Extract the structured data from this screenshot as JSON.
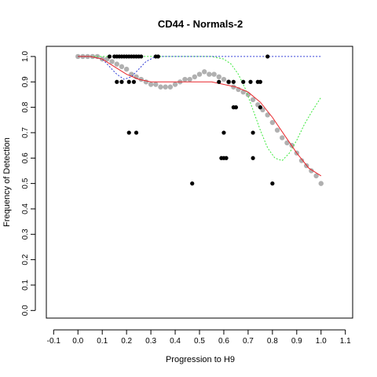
{
  "chart_data": {
    "type": "scatter",
    "title": "CD44 - Normals-2",
    "xlabel": "Progression to H9",
    "ylabel": "Frequency of Detection",
    "xlim": [
      -0.13,
      1.13
    ],
    "ylim": [
      -0.03,
      1.04
    ],
    "xticks": [
      "-0.1",
      "0.0",
      "0.1",
      "0.2",
      "0.3",
      "0.4",
      "0.5",
      "0.6",
      "0.7",
      "0.8",
      "0.9",
      "1.0",
      "1.1"
    ],
    "xtick_values": [
      -0.1,
      0.0,
      0.1,
      0.2,
      0.3,
      0.4,
      0.5,
      0.6,
      0.7,
      0.8,
      0.9,
      1.0,
      1.1
    ],
    "yticks": [
      "0.0",
      "0.1",
      "0.2",
      "0.3",
      "0.4",
      "0.5",
      "0.6",
      "0.7",
      "0.8",
      "0.9",
      "1.0"
    ],
    "ytick_values": [
      0.0,
      0.1,
      0.2,
      0.3,
      0.4,
      0.5,
      0.6,
      0.7,
      0.8,
      0.9,
      1.0
    ],
    "grid": false,
    "legend": "none",
    "colors": {
      "observed": "#000000",
      "smoothed_points": "#b0b0b0",
      "fit_line": "#e8262b",
      "blue_curve": "#2f3bd6",
      "green_curve": "#3ae83a"
    },
    "observed_points": {
      "x": [
        0.13,
        0.15,
        0.16,
        0.17,
        0.18,
        0.19,
        0.2,
        0.21,
        0.22,
        0.23,
        0.24,
        0.25,
        0.26,
        0.32,
        0.33,
        0.78,
        0.16,
        0.18,
        0.21,
        0.23,
        0.58,
        0.62,
        0.64,
        0.68,
        0.71,
        0.74,
        0.75,
        0.64,
        0.65,
        0.75,
        0.21,
        0.24,
        0.6,
        0.72,
        0.59,
        0.6,
        0.61,
        0.72,
        0.47,
        0.8
      ],
      "y": [
        1.0,
        1.0,
        1.0,
        1.0,
        1.0,
        1.0,
        1.0,
        1.0,
        1.0,
        1.0,
        1.0,
        1.0,
        1.0,
        1.0,
        1.0,
        1.0,
        0.9,
        0.9,
        0.9,
        0.9,
        0.9,
        0.9,
        0.9,
        0.9,
        0.9,
        0.9,
        0.9,
        0.8,
        0.8,
        0.8,
        0.7,
        0.7,
        0.7,
        0.7,
        0.6,
        0.6,
        0.6,
        0.6,
        0.5,
        0.5
      ]
    },
    "smoothed_points": {
      "x": [
        0.0,
        0.02,
        0.04,
        0.06,
        0.08,
        0.1,
        0.12,
        0.14,
        0.16,
        0.18,
        0.2,
        0.22,
        0.24,
        0.26,
        0.28,
        0.3,
        0.32,
        0.34,
        0.36,
        0.38,
        0.4,
        0.42,
        0.44,
        0.46,
        0.48,
        0.5,
        0.52,
        0.54,
        0.56,
        0.58,
        0.6,
        0.62,
        0.64,
        0.66,
        0.68,
        0.7,
        0.72,
        0.74,
        0.76,
        0.78,
        0.8,
        0.82,
        0.84,
        0.86,
        0.88,
        0.9,
        0.92,
        0.94,
        0.96,
        0.98,
        1.0
      ],
      "y": [
        1.0,
        1.0,
        1.0,
        1.0,
        1.0,
        0.99,
        0.99,
        0.98,
        0.97,
        0.96,
        0.95,
        0.93,
        0.92,
        0.91,
        0.9,
        0.89,
        0.89,
        0.88,
        0.88,
        0.88,
        0.89,
        0.9,
        0.91,
        0.91,
        0.92,
        0.93,
        0.94,
        0.93,
        0.93,
        0.92,
        0.91,
        0.9,
        0.88,
        0.87,
        0.86,
        0.85,
        0.83,
        0.81,
        0.79,
        0.77,
        0.74,
        0.71,
        0.68,
        0.66,
        0.65,
        0.62,
        0.59,
        0.57,
        0.55,
        0.53,
        0.5
      ]
    },
    "fit_line": {
      "x": [
        0.0,
        0.05,
        0.1,
        0.15,
        0.2,
        0.25,
        0.3,
        0.35,
        0.4,
        0.45,
        0.5,
        0.55,
        0.6,
        0.65,
        0.7,
        0.75,
        0.8,
        0.85,
        0.9,
        0.95,
        1.0
      ],
      "y": [
        1.0,
        1.0,
        0.99,
        0.96,
        0.93,
        0.91,
        0.9,
        0.9,
        0.9,
        0.9,
        0.9,
        0.9,
        0.89,
        0.88,
        0.86,
        0.82,
        0.76,
        0.69,
        0.62,
        0.56,
        0.53
      ]
    },
    "blue_curve": {
      "x": [
        0.0,
        0.05,
        0.1,
        0.13,
        0.16,
        0.19,
        0.22,
        0.25,
        0.28,
        0.32,
        0.4,
        0.5,
        0.6,
        0.7,
        0.8,
        0.9,
        1.0
      ],
      "y": [
        1.0,
        1.0,
        0.99,
        0.96,
        0.93,
        0.91,
        0.92,
        0.95,
        0.98,
        1.0,
        1.0,
        1.0,
        1.0,
        1.0,
        1.0,
        1.0,
        1.0
      ]
    },
    "green_curve": {
      "x": [
        0.0,
        0.05,
        0.1,
        0.15,
        0.2,
        0.25,
        0.3,
        0.35,
        0.4,
        0.45,
        0.5,
        0.55,
        0.6,
        0.63,
        0.66,
        0.69,
        0.72,
        0.75,
        0.78,
        0.81,
        0.84,
        0.87,
        0.9,
        0.93,
        0.96,
        1.0
      ],
      "y": [
        1.0,
        1.0,
        1.0,
        1.0,
        1.0,
        1.0,
        1.0,
        1.0,
        1.0,
        1.0,
        1.0,
        1.0,
        0.99,
        0.97,
        0.93,
        0.87,
        0.79,
        0.71,
        0.64,
        0.6,
        0.59,
        0.62,
        0.67,
        0.73,
        0.78,
        0.84
      ]
    }
  }
}
